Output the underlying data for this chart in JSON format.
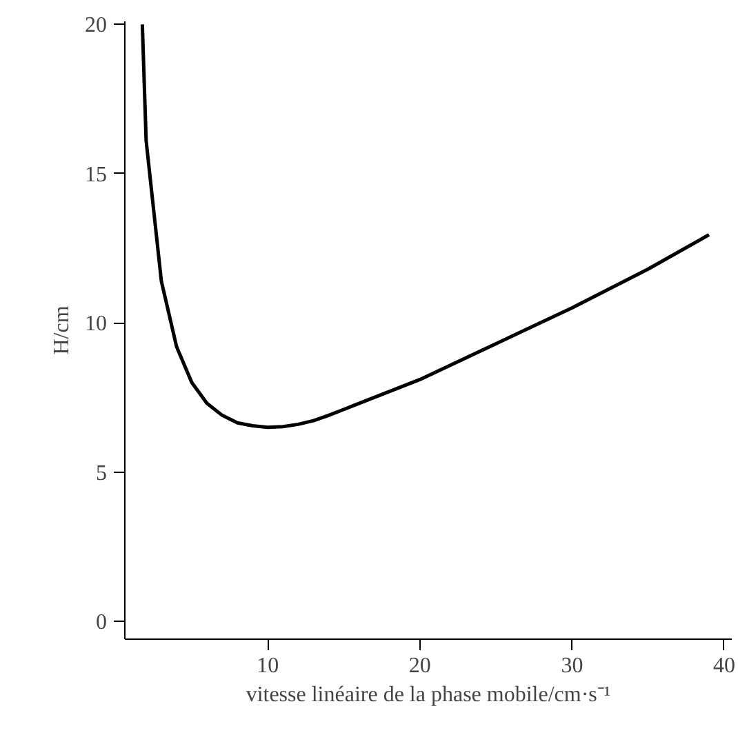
{
  "chart_data": {
    "type": "line",
    "xlabel": "vitesse linéaire de la phase mobile/cm·s⁻¹",
    "ylabel": "H/cm",
    "x": [
      1.75,
      2,
      3,
      4,
      5,
      6,
      7,
      8,
      9,
      10,
      11,
      12,
      13,
      14,
      15,
      17,
      20,
      25,
      30,
      35,
      39
    ],
    "series": [
      {
        "color": "#000000",
        "values": [
          20,
          16.1,
          11.4,
          9.2,
          8.0,
          7.3,
          6.9,
          6.65,
          6.55,
          6.5,
          6.52,
          6.6,
          6.72,
          6.9,
          7.1,
          7.5,
          8.1,
          9.3,
          10.5,
          11.8,
          12.95
        ]
      }
    ],
    "xlim": [
      0.6,
      40.5
    ],
    "ylim": [
      -0.6,
      20.1
    ],
    "xticks": [
      10,
      20,
      30,
      40
    ],
    "yticks": [
      0,
      5,
      10,
      15,
      20
    ],
    "grid": false,
    "marker": "none",
    "line_style": "solid"
  }
}
